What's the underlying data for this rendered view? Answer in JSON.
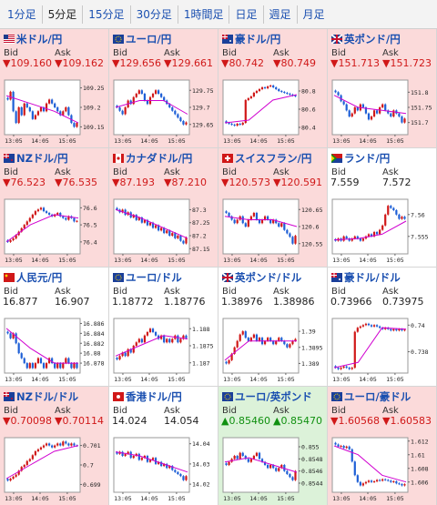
{
  "timeframes": [
    {
      "label": "1分足",
      "active": false
    },
    {
      "label": "5分足",
      "active": true
    },
    {
      "label": "15分足",
      "active": false
    },
    {
      "label": "30分足",
      "active": false
    },
    {
      "label": "1時間足",
      "active": false
    },
    {
      "label": "日足",
      "active": false
    },
    {
      "label": "週足",
      "active": false
    },
    {
      "label": "月足",
      "active": false
    }
  ],
  "labels": {
    "bid": "Bid",
    "ask": "Ask"
  },
  "colors": {
    "up_bg": "#dcf2d9",
    "down_bg": "#fbdada",
    "up_text": "#109010",
    "down_text": "#d01818",
    "link": "#1a4fb0",
    "ma_line": "#d000d0",
    "candle_up": "#d01818",
    "candle_down": "#1e5fd6"
  },
  "pairs": [
    {
      "name": "米ドル/円",
      "direction": "down",
      "flag": "us-flag-icon",
      "bid": "▼109.160",
      "ask": "▼109.162",
      "chart_data": {
        "type": "candlestick",
        "x_ticks": [
          "13:05",
          "14:05",
          "15:05"
        ],
        "y_ticks": [
          "109.25",
          "109.2",
          "109.15"
        ],
        "ylim": [
          109.13,
          109.27
        ],
        "close": [
          109.22,
          109.24,
          109.19,
          109.16,
          109.2,
          109.18,
          109.21,
          109.2,
          109.19,
          109.17,
          109.18,
          109.19,
          109.2,
          109.19,
          109.21,
          109.22,
          109.21,
          109.2,
          109.19,
          109.18,
          109.19,
          109.2,
          109.18,
          109.16,
          109.15,
          109.16
        ],
        "ma": [
          109.23,
          109.21,
          109.19,
          109.16
        ]
      }
    },
    {
      "name": "ユーロ/円",
      "direction": "down",
      "flag": "eu-flag-icon",
      "bid": "▼129.656",
      "ask": "▼129.661",
      "chart_data": {
        "type": "candlestick",
        "x_ticks": [
          "13:05",
          "14:05",
          "15:05"
        ],
        "y_ticks": [
          "129.75",
          "129.7",
          "129.65"
        ],
        "ylim": [
          129.62,
          129.78
        ],
        "close": [
          129.7,
          129.69,
          129.68,
          129.7,
          129.72,
          129.71,
          129.73,
          129.74,
          129.75,
          129.74,
          129.72,
          129.71,
          129.73,
          129.74,
          129.75,
          129.74,
          129.73,
          129.72,
          129.71,
          129.7,
          129.69,
          129.68,
          129.67,
          129.66,
          129.65,
          129.656
        ],
        "ma": [
          129.7,
          129.72,
          129.72,
          129.68
        ]
      }
    },
    {
      "name": "豪ドル/円",
      "direction": "down",
      "flag": "au-flag-icon",
      "bid": "▼80.742",
      "ask": "▼80.749",
      "chart_data": {
        "type": "candlestick",
        "x_ticks": [
          "13:05",
          "14:05",
          "15:05"
        ],
        "y_ticks": [
          "80.8",
          "80.6",
          "80.4"
        ],
        "ylim": [
          80.32,
          80.92
        ],
        "close": [
          80.45,
          80.44,
          80.43,
          80.42,
          80.44,
          80.43,
          80.45,
          80.7,
          80.72,
          80.74,
          80.78,
          80.8,
          80.82,
          80.84,
          80.83,
          80.85,
          80.86,
          80.84,
          80.82,
          80.8,
          80.79,
          80.78,
          80.77,
          80.76,
          80.75,
          80.742
        ],
        "ma": [
          80.45,
          80.48,
          80.7,
          80.76
        ]
      }
    },
    {
      "name": "英ポンド/円",
      "direction": "down",
      "flag": "gb-flag-icon",
      "bid": "▼151.713",
      "ask": "▼151.723",
      "chart_data": {
        "type": "candlestick",
        "x_ticks": [
          "13:05",
          "14:05",
          "15:05"
        ],
        "y_ticks": [
          "151.8",
          "151.75",
          "151.7"
        ],
        "ylim": [
          151.66,
          151.84
        ],
        "close": [
          151.8,
          151.79,
          151.77,
          151.76,
          151.74,
          151.72,
          151.73,
          151.75,
          151.74,
          151.76,
          151.75,
          151.73,
          151.71,
          151.72,
          151.74,
          151.73,
          151.75,
          151.76,
          151.74,
          151.73,
          151.72,
          151.74,
          151.73,
          151.72,
          151.7,
          151.713
        ],
        "ma": [
          151.79,
          151.75,
          151.74,
          151.73
        ]
      }
    },
    {
      "name": "NZドル/円",
      "direction": "down",
      "flag": "nz-flag-icon",
      "bid": "▼76.523",
      "ask": "▼76.535",
      "chart_data": {
        "type": "candlestick",
        "x_ticks": [
          "13:05",
          "14:05",
          "15:05"
        ],
        "y_ticks": [
          "76.6",
          "76.5",
          "76.4"
        ],
        "ylim": [
          76.33,
          76.65
        ],
        "close": [
          76.4,
          76.41,
          76.42,
          76.44,
          76.46,
          76.48,
          76.5,
          76.52,
          76.54,
          76.56,
          76.58,
          76.59,
          76.6,
          76.58,
          76.57,
          76.56,
          76.55,
          76.56,
          76.57,
          76.55,
          76.54,
          76.53,
          76.55,
          76.54,
          76.52,
          76.523
        ],
        "ma": [
          76.4,
          76.5,
          76.56,
          76.54
        ]
      }
    },
    {
      "name": "カナダドル/円",
      "direction": "down",
      "flag": "ca-flag-icon",
      "bid": "▼87.193",
      "ask": "▼87.210",
      "chart_data": {
        "type": "candlestick",
        "x_ticks": [
          "13:05",
          "14:05",
          "15:05"
        ],
        "y_ticks": [
          "87.3",
          "87.25",
          "87.2",
          "87.15"
        ],
        "ylim": [
          87.13,
          87.34
        ],
        "close": [
          87.3,
          87.29,
          87.3,
          87.28,
          87.29,
          87.27,
          87.28,
          87.26,
          87.27,
          87.25,
          87.26,
          87.24,
          87.25,
          87.23,
          87.24,
          87.22,
          87.23,
          87.21,
          87.22,
          87.2,
          87.21,
          87.19,
          87.2,
          87.18,
          87.17,
          87.193
        ],
        "ma": [
          87.3,
          87.27,
          87.23,
          87.19
        ]
      }
    },
    {
      "name": "スイスフラン/円",
      "direction": "down",
      "flag": "ch-flag-icon",
      "bid": "▼120.573",
      "ask": "▼120.591",
      "chart_data": {
        "type": "candlestick",
        "x_ticks": [
          "13:05",
          "14:05",
          "15:05"
        ],
        "y_ticks": [
          "120.65",
          "120.6",
          "120.55"
        ],
        "ylim": [
          120.52,
          120.68
        ],
        "close": [
          120.64,
          120.63,
          120.62,
          120.61,
          120.62,
          120.63,
          120.61,
          120.6,
          120.62,
          120.63,
          120.64,
          120.62,
          120.61,
          120.62,
          120.63,
          120.62,
          120.61,
          120.62,
          120.61,
          120.6,
          120.61,
          120.59,
          120.58,
          120.57,
          120.55,
          120.573
        ],
        "ma": [
          120.63,
          120.62,
          120.62,
          120.6
        ]
      }
    },
    {
      "name": "ランド/円",
      "direction": "flat",
      "flag": "za-flag-icon",
      "bid": "7.559",
      "ask": "7.572",
      "chart_data": {
        "type": "candlestick",
        "x_ticks": [
          "13:05",
          "14:05",
          "15:05"
        ],
        "y_ticks": [
          "7.56",
          "7.555"
        ],
        "ylim": [
          7.551,
          7.5635
        ],
        "close": [
          7.554,
          7.5545,
          7.554,
          7.555,
          7.5545,
          7.554,
          7.5545,
          7.555,
          7.5545,
          7.554,
          7.5545,
          7.555,
          7.5555,
          7.555,
          7.556,
          7.5555,
          7.5565,
          7.5575,
          7.56,
          7.562,
          7.5615,
          7.561,
          7.56,
          7.559,
          7.5595,
          7.559
        ],
        "ma": [
          7.5542,
          7.5545,
          7.5555,
          7.5585
        ]
      }
    },
    {
      "name": "人民元/円",
      "direction": "flat",
      "flag": "cn-flag-icon",
      "bid": "16.877",
      "ask": "16.907",
      "chart_data": {
        "type": "candlestick",
        "x_ticks": [
          "13:05",
          "14:05",
          "15:05"
        ],
        "y_ticks": [
          "16.886",
          "16.884",
          "16.882",
          "16.88",
          "16.878"
        ],
        "ylim": [
          16.876,
          16.887
        ],
        "close": [
          16.884,
          16.883,
          16.884,
          16.882,
          16.88,
          16.879,
          16.878,
          16.877,
          16.878,
          16.877,
          16.878,
          16.879,
          16.878,
          16.877,
          16.878,
          16.879,
          16.878,
          16.877,
          16.878,
          16.877,
          16.878,
          16.879,
          16.878,
          16.877,
          16.878,
          16.877
        ],
        "ma": [
          16.885,
          16.881,
          16.878,
          16.878
        ]
      }
    },
    {
      "name": "ユーロ/ドル",
      "direction": "flat",
      "flag": "eu-flag-icon",
      "bid": "1.18772",
      "ask": "1.18776",
      "chart_data": {
        "type": "candlestick",
        "x_ticks": [
          "13:05",
          "14:05",
          "15:05"
        ],
        "y_ticks": [
          "1.188",
          "1.1875",
          "1.187"
        ],
        "ylim": [
          1.1867,
          1.1883
        ],
        "close": [
          1.1871,
          1.1872,
          1.1873,
          1.1872,
          1.1874,
          1.1873,
          1.1875,
          1.1876,
          1.1877,
          1.1876,
          1.1878,
          1.1879,
          1.188,
          1.1879,
          1.1878,
          1.1877,
          1.1878,
          1.1876,
          1.1877,
          1.1876,
          1.1877,
          1.1878,
          1.1876,
          1.1877,
          1.1878,
          1.18772
        ],
        "ma": [
          1.1872,
          1.1875,
          1.1878,
          1.1877
        ]
      }
    },
    {
      "name": "英ポンド/ドル",
      "direction": "flat",
      "flag": "gb-flag-icon",
      "bid": "1.38976",
      "ask": "1.38986",
      "chart_data": {
        "type": "candlestick",
        "x_ticks": [
          "13:05",
          "14:05",
          "15:05"
        ],
        "y_ticks": [
          "1.39",
          "1.3895",
          "1.389"
        ],
        "ylim": [
          1.3887,
          1.3904
        ],
        "close": [
          1.389,
          1.3891,
          1.3893,
          1.3895,
          1.3897,
          1.3899,
          1.39,
          1.3898,
          1.3897,
          1.3898,
          1.3899,
          1.3897,
          1.3898,
          1.3896,
          1.3897,
          1.3898,
          1.3897,
          1.3896,
          1.3897,
          1.3898,
          1.3897,
          1.3896,
          1.3895,
          1.3896,
          1.3897,
          1.38976
        ],
        "ma": [
          1.3891,
          1.3897,
          1.3897,
          1.3897
        ]
      }
    },
    {
      "name": "豪ドル/ドル",
      "direction": "flat",
      "flag": "au-flag-icon",
      "bid": "0.73966",
      "ask": "0.73975",
      "chart_data": {
        "type": "candlestick",
        "x_ticks": [
          "13:05",
          "14:05",
          "15:05"
        ],
        "y_ticks": [
          "0.74",
          "0.738"
        ],
        "ylim": [
          0.7364,
          0.7405
        ],
        "close": [
          0.7368,
          0.7367,
          0.7368,
          0.7369,
          0.7368,
          0.7367,
          0.7368,
          0.7395,
          0.7398,
          0.7399,
          0.74,
          0.7401,
          0.74,
          0.7399,
          0.74,
          0.7399,
          0.7398,
          0.7397,
          0.7398,
          0.7397,
          0.7396,
          0.7397,
          0.7396,
          0.7397,
          0.7396,
          0.73966
        ],
        "ma": [
          0.7368,
          0.7372,
          0.7398,
          0.7397
        ]
      }
    },
    {
      "name": "NZドル/ドル",
      "direction": "down",
      "flag": "nz-flag-icon",
      "bid": "▼0.70098",
      "ask": "▼0.70114",
      "chart_data": {
        "type": "candlestick",
        "x_ticks": [
          "13:05",
          "14:05",
          "15:05"
        ],
        "y_ticks": [
          "0.701",
          "0.7",
          "0.699"
        ],
        "ylim": [
          0.6986,
          0.7014
        ],
        "close": [
          0.6992,
          0.6993,
          0.6994,
          0.6995,
          0.6997,
          0.6999,
          0.7,
          0.7002,
          0.7003,
          0.7005,
          0.7007,
          0.7008,
          0.7009,
          0.701,
          0.7011,
          0.701,
          0.7009,
          0.701,
          0.7011,
          0.701,
          0.7012,
          0.7011,
          0.701,
          0.7011,
          0.701,
          0.70098
        ],
        "ma": [
          0.6993,
          0.7,
          0.7007,
          0.701
        ]
      }
    },
    {
      "name": "香港ドル/円",
      "direction": "flat",
      "flag": "hk-flag-icon",
      "bid": "14.024",
      "ask": "14.054",
      "chart_data": {
        "type": "candlestick",
        "x_ticks": [
          "13:05",
          "14:05",
          "15:05"
        ],
        "y_ticks": [
          "14.04",
          "14.03",
          "14.02"
        ],
        "ylim": [
          14.016,
          14.043
        ],
        "close": [
          14.035,
          14.036,
          14.034,
          14.035,
          14.036,
          14.033,
          14.034,
          14.035,
          14.032,
          14.033,
          14.034,
          14.031,
          14.032,
          14.033,
          14.03,
          14.031,
          14.029,
          14.03,
          14.028,
          14.029,
          14.027,
          14.026,
          14.025,
          14.024,
          14.022,
          14.024
        ],
        "ma": [
          14.036,
          14.034,
          14.03,
          14.026
        ]
      }
    },
    {
      "name": "ユーロ/英ポンド",
      "direction": "up",
      "flag": "eu-flag-icon",
      "bid": "▲0.85460",
      "ask": "▲0.85470",
      "chart_data": {
        "type": "candlestick",
        "x_ticks": [
          "13:05",
          "14:05",
          "15:05"
        ],
        "y_ticks": [
          "0.855",
          "0.8548",
          "0.8546",
          "0.8544"
        ],
        "ylim": [
          0.85425,
          0.85515
        ],
        "close": [
          0.8547,
          0.85475,
          0.8548,
          0.85485,
          0.8548,
          0.8549,
          0.85485,
          0.8548,
          0.85475,
          0.8548,
          0.85485,
          0.8549,
          0.8548,
          0.85475,
          0.8547,
          0.85465,
          0.8547,
          0.85465,
          0.8546,
          0.85465,
          0.8547,
          0.8546,
          0.85455,
          0.8545,
          0.85445,
          0.8546
        ],
        "ma": [
          0.85475,
          0.85482,
          0.8547,
          0.85458
        ]
      }
    },
    {
      "name": "ユーロ/豪ドル",
      "direction": "down",
      "flag": "eu-flag-icon",
      "bid": "▼1.60568",
      "ask": "▼1.60583",
      "chart_data": {
        "type": "candlestick",
        "x_ticks": [
          "13:05",
          "14:05",
          "15:05"
        ],
        "y_ticks": [
          "1.612",
          "1.61",
          "1.608",
          "1.606"
        ],
        "ylim": [
          1.6045,
          1.6125
        ],
        "close": [
          1.6115,
          1.6112,
          1.6113,
          1.611,
          1.6112,
          1.6108,
          1.609,
          1.607,
          1.606,
          1.6055,
          1.6058,
          1.606,
          1.6062,
          1.606,
          1.6061,
          1.6063,
          1.6062,
          1.6064,
          1.6063,
          1.6062,
          1.606,
          1.6061,
          1.6058,
          1.6057,
          1.6055,
          1.60568
        ],
        "ma": [
          1.6113,
          1.61,
          1.607,
          1.606
        ]
      }
    }
  ]
}
